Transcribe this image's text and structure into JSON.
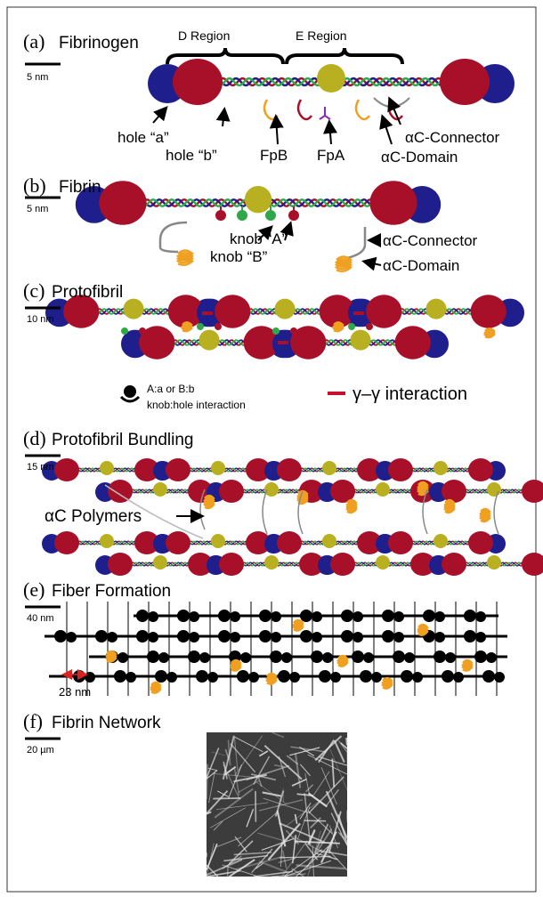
{
  "panels": [
    {
      "label": "(a)",
      "title": "Fibrinogen",
      "scale_bar": "5 nm",
      "annotations": [
        "D Region",
        "E Region",
        "hole “a”",
        "hole “b”",
        "FpB",
        "FpA",
        "αC-Connector",
        "αC-Domain"
      ]
    },
    {
      "label": "(b)",
      "title": "Fibrin",
      "scale_bar": "5 nm",
      "annotations": [
        "knob “A”",
        "knob “B”",
        "αC-Connector",
        "αC-Domain"
      ]
    },
    {
      "label": "(c)",
      "title": "Protofibril",
      "scale_bar": "10 nm",
      "annotations": [
        "A:a  or B:b",
        "knob:hole interaction",
        "γ–γ interaction"
      ]
    },
    {
      "label": "(d)",
      "title": "Protofibril Bundling",
      "scale_bar": "15 nm",
      "annotations": [
        "αC Polymers"
      ]
    },
    {
      "label": "(e)",
      "title": "Fiber Formation",
      "scale_bar": "40 nm",
      "annotations": [
        "23 nm"
      ]
    },
    {
      "label": "(f)",
      "title": "Fibrin Network",
      "scale_bar": "20 µm",
      "annotations": []
    }
  ]
}
